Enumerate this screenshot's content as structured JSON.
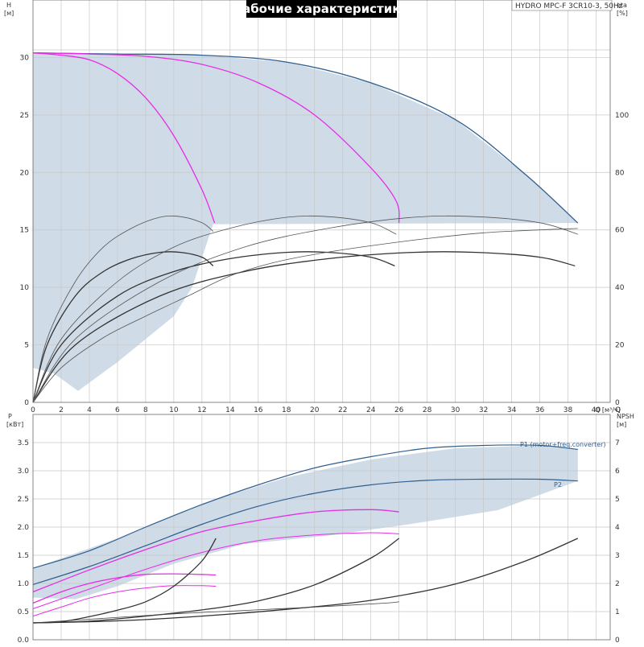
{
  "chart_data": [
    {
      "type": "line",
      "panel": "top",
      "title": "Рабочие характеристики",
      "model": "HYDRO MPC-F 3CR10-3, 50Hz",
      "xlabel": "Q [м³/ч]",
      "ylabel_left": [
        "H",
        "[м]"
      ],
      "ylabel_right": [
        "eta",
        "[%]"
      ],
      "xlim": [
        0,
        41
      ],
      "ylim_left": [
        0,
        35
      ],
      "ylim_right": [
        0,
        140
      ],
      "xticks": [
        "0",
        "2",
        "4",
        "6",
        "8",
        "10",
        "12",
        "14",
        "16",
        "18",
        "20",
        "22",
        "24",
        "26",
        "28",
        "30",
        "32",
        "34",
        "36",
        "38",
        "40",
        "Q"
      ],
      "yticks_left": [
        "0",
        "5",
        "10",
        "15",
        "20",
        "25",
        "30"
      ],
      "yticks_right": [
        "0",
        "20",
        "40",
        "60",
        "80",
        "100"
      ],
      "grid": true,
      "colors": {
        "area": "#cfdbe6",
        "max_curve": "#2f5f8f",
        "speed_curve": "#e62ee6",
        "eta_curve": "#333333",
        "eta_thin": "#555555",
        "title_bg": "#000000"
      },
      "area": [
        [
          0,
          30.4
        ],
        [
          6,
          30.3
        ],
        [
          12,
          30.2
        ],
        [
          18,
          29.6
        ],
        [
          24,
          27.8
        ],
        [
          30,
          24.6
        ],
        [
          35,
          19.8
        ],
        [
          38.7,
          15.6
        ],
        [
          12.8,
          15.5
        ],
        [
          11.3,
          10
        ],
        [
          10,
          7.5
        ],
        [
          8,
          5.5
        ],
        [
          6,
          3.5
        ],
        [
          3.2,
          1
        ],
        [
          1.5,
          2.5
        ],
        [
          0,
          3
        ],
        [
          0,
          30.4
        ]
      ],
      "series": [
        {
          "role": "max-speed-head",
          "color": "#2f5f8f",
          "points": [
            [
              0,
              30.4
            ],
            [
              6,
              30.3
            ],
            [
              12,
              30.2
            ],
            [
              18,
              29.6
            ],
            [
              24,
              27.8
            ],
            [
              30,
              24.6
            ],
            [
              35,
              19.8
            ],
            [
              38.7,
              15.6
            ]
          ]
        },
        {
          "role": "head",
          "color": "#e62ee6",
          "points": [
            [
              0,
              30.4
            ],
            [
              2,
              30.2
            ],
            [
              4,
              29.8
            ],
            [
              6,
              28.6
            ],
            [
              8,
              26.5
            ],
            [
              10,
              23.2
            ],
            [
              12,
              18.5
            ],
            [
              12.9,
              15.6
            ]
          ]
        },
        {
          "role": "head",
          "color": "#e62ee6",
          "points": [
            [
              0,
              30.4
            ],
            [
              4,
              30.3
            ],
            [
              8,
              30.1
            ],
            [
              12,
              29.4
            ],
            [
              16,
              27.8
            ],
            [
              20,
              25
            ],
            [
              24,
              20.4
            ],
            [
              25.8,
              17.5
            ],
            [
              26,
              15.6
            ]
          ]
        },
        {
          "role": "eta",
          "color": "#333333",
          "points": [
            [
              0,
              0
            ],
            [
              1,
              20
            ],
            [
              3,
              37
            ],
            [
              5,
              45.5
            ],
            [
              7,
              50
            ],
            [
              9,
              52.2
            ],
            [
              10.5,
              52.2
            ],
            [
              12,
              50.5
            ],
            [
              12.8,
              47.5
            ]
          ]
        },
        {
          "role": "eta",
          "color": "#333333",
          "points": [
            [
              0,
              0
            ],
            [
              2,
              20
            ],
            [
              6,
              37
            ],
            [
              10,
              45.5
            ],
            [
              14,
              50
            ],
            [
              18,
              52.2
            ],
            [
              21,
              52.2
            ],
            [
              24,
              50.5
            ],
            [
              25.7,
              47.5
            ]
          ]
        },
        {
          "role": "eta",
          "color": "#333333",
          "points": [
            [
              0,
              0
            ],
            [
              3,
              20
            ],
            [
              9,
              37
            ],
            [
              15,
              45.5
            ],
            [
              21,
              50
            ],
            [
              27,
              52.2
            ],
            [
              31.5,
              52.2
            ],
            [
              36,
              50.5
            ],
            [
              38.5,
              47.5
            ]
          ]
        },
        {
          "role": "eta-max",
          "color": "#555555",
          "points": [
            [
              0,
              0
            ],
            [
              1,
              22
            ],
            [
              3,
              42
            ],
            [
              5,
              54
            ],
            [
              7,
              60.6
            ],
            [
              9,
              64.4
            ],
            [
              10.5,
              64.6
            ],
            [
              12,
              62.5
            ],
            [
              12.8,
              59.5
            ]
          ]
        },
        {
          "role": "eta-max",
          "color": "#555555",
          "points": [
            [
              0,
              0
            ],
            [
              2,
              22
            ],
            [
              6,
              42
            ],
            [
              10,
              54
            ],
            [
              14,
              60.6
            ],
            [
              18,
              64.4
            ],
            [
              21,
              64.6
            ],
            [
              24,
              62.5
            ],
            [
              25.8,
              58.5
            ]
          ]
        },
        {
          "role": "eta-max",
          "color": "#555555",
          "points": [
            [
              0,
              0
            ],
            [
              3,
              22
            ],
            [
              9,
              42
            ],
            [
              15,
              54
            ],
            [
              21,
              60.6
            ],
            [
              27,
              64.4
            ],
            [
              31.5,
              64.6
            ],
            [
              36,
              62.5
            ],
            [
              38.7,
              58.5
            ]
          ]
        },
        {
          "role": "eta-envelope",
          "color": "#555555",
          "points": [
            [
              0,
              0
            ],
            [
              2,
              12
            ],
            [
              5,
              22.5
            ],
            [
              8,
              30
            ],
            [
              11,
              37
            ],
            [
              14,
              44
            ],
            [
              17,
              48.5
            ],
            [
              20,
              51.5
            ],
            [
              24,
              54.5
            ],
            [
              28,
              57
            ],
            [
              32,
              59
            ],
            [
              36,
              60
            ],
            [
              38.7,
              60.5
            ]
          ]
        }
      ]
    },
    {
      "type": "line",
      "panel": "bottom",
      "xlim": [
        0,
        41
      ],
      "ylim_left": [
        0,
        4
      ],
      "ylim_right": [
        0,
        8
      ],
      "ylabel_left": [
        "P",
        "[кВт]"
      ],
      "ylabel_right": [
        "NPSH",
        "[м]"
      ],
      "yticks_left": [
        "0.0",
        "0.5",
        "1.0",
        "1.5",
        "2.0",
        "2.5",
        "3.0",
        "3.5"
      ],
      "yticks_right": [
        "0",
        "1",
        "2",
        "3",
        "4",
        "5",
        "6",
        "7"
      ],
      "grid": true,
      "series_labels": [
        "P1 (motor+freq.converter)",
        "P2"
      ],
      "area": [
        [
          0,
          1.27
        ],
        [
          6,
          1.8
        ],
        [
          12,
          2.42
        ],
        [
          18,
          2.88
        ],
        [
          24,
          3.2
        ],
        [
          30,
          3.4
        ],
        [
          36,
          3.45
        ],
        [
          38.7,
          3.38
        ],
        [
          38.7,
          2.82
        ],
        [
          33,
          2.3
        ],
        [
          27,
          2.06
        ],
        [
          21,
          1.85
        ],
        [
          15,
          1.7
        ],
        [
          10,
          1.35
        ],
        [
          6,
          0.95
        ],
        [
          3,
          0.72
        ],
        [
          0,
          0.75
        ],
        [
          0,
          1.27
        ]
      ],
      "series": [
        {
          "name": "P1 (motor+freq.converter)",
          "color": "#2f5f8f",
          "points": [
            [
              0,
              1.27
            ],
            [
              4,
              1.58
            ],
            [
              8,
              2.0
            ],
            [
              12,
              2.4
            ],
            [
              16,
              2.75
            ],
            [
              20,
              3.05
            ],
            [
              24,
              3.25
            ],
            [
              28,
              3.4
            ],
            [
              32,
              3.45
            ],
            [
              36,
              3.45
            ],
            [
              38.7,
              3.38
            ]
          ]
        },
        {
          "name": "P2",
          "color": "#2f5f8f",
          "points": [
            [
              0,
              0.98
            ],
            [
              4,
              1.3
            ],
            [
              8,
              1.67
            ],
            [
              12,
              2.05
            ],
            [
              16,
              2.37
            ],
            [
              20,
              2.6
            ],
            [
              24,
              2.75
            ],
            [
              28,
              2.83
            ],
            [
              32,
              2.85
            ],
            [
              36,
              2.85
            ],
            [
              38.7,
              2.82
            ]
          ]
        },
        {
          "role": "P1-speed",
          "color": "#e62ee6",
          "points": [
            [
              0,
              0.65
            ],
            [
              2,
              0.85
            ],
            [
              4,
              1.0
            ],
            [
              6,
              1.1
            ],
            [
              8,
              1.16
            ],
            [
              10,
              1.17
            ],
            [
              12,
              1.16
            ],
            [
              13,
              1.15
            ]
          ]
        },
        {
          "role": "P2-speed",
          "color": "#e62ee6",
          "points": [
            [
              0,
              0.42
            ],
            [
              2,
              0.58
            ],
            [
              4,
              0.74
            ],
            [
              6,
              0.85
            ],
            [
              8,
              0.92
            ],
            [
              10,
              0.96
            ],
            [
              12,
              0.96
            ],
            [
              13,
              0.95
            ]
          ]
        },
        {
          "role": "P1-speed",
          "color": "#e62ee6",
          "points": [
            [
              0,
              0.85
            ],
            [
              4,
              1.24
            ],
            [
              8,
              1.6
            ],
            [
              12,
              1.92
            ],
            [
              16,
              2.12
            ],
            [
              20,
              2.27
            ],
            [
              24,
              2.31
            ],
            [
              26,
              2.27
            ]
          ]
        },
        {
          "role": "P2-speed",
          "color": "#e62ee6",
          "points": [
            [
              0,
              0.55
            ],
            [
              4,
              0.9
            ],
            [
              8,
              1.25
            ],
            [
              12,
              1.55
            ],
            [
              16,
              1.76
            ],
            [
              20,
              1.86
            ],
            [
              24,
              1.9
            ],
            [
              26,
              1.88
            ]
          ]
        },
        {
          "role": "npsh",
          "color": "#333333",
          "points": [
            [
              0,
              0.6
            ],
            [
              2,
              0.64
            ],
            [
              4,
              0.82
            ],
            [
              6,
              1.05
            ],
            [
              8,
              1.35
            ],
            [
              10,
              1.9
            ],
            [
              12,
              2.8
            ],
            [
              13,
              3.6
            ]
          ]
        },
        {
          "role": "npsh",
          "color": "#333333",
          "points": [
            [
              0,
              0.6
            ],
            [
              4,
              0.66
            ],
            [
              8,
              0.84
            ],
            [
              12,
              1.06
            ],
            [
              16,
              1.38
            ],
            [
              20,
              1.95
            ],
            [
              24,
              2.9
            ],
            [
              26,
              3.6
            ]
          ]
        },
        {
          "role": "npsh",
          "color": "#333333",
          "points": [
            [
              0,
              0.6
            ],
            [
              6,
              0.67
            ],
            [
              12,
              0.84
            ],
            [
              18,
              1.08
            ],
            [
              24,
              1.4
            ],
            [
              30,
              1.98
            ],
            [
              35,
              2.8
            ],
            [
              38.7,
              3.6
            ]
          ]
        },
        {
          "role": "npsh-thin",
          "color": "#444444",
          "points": [
            [
              0,
              0.6
            ],
            [
              5,
              0.76
            ],
            [
              10,
              0.92
            ],
            [
              15,
              1.04
            ],
            [
              20,
              1.16
            ],
            [
              25,
              1.3
            ],
            [
              26,
              1.35
            ]
          ]
        }
      ]
    }
  ]
}
